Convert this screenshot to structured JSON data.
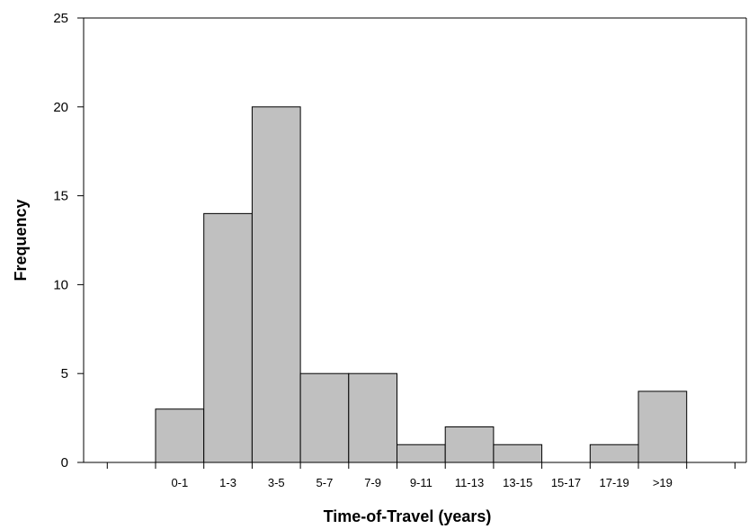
{
  "chart_data": {
    "type": "bar",
    "title": "",
    "xlabel": "Time-of-Travel (years)",
    "ylabel": "Frequency",
    "categories": [
      "0-1",
      "1-3",
      "3-5",
      "5-7",
      "7-9",
      "9-11",
      "11-13",
      "13-15",
      "15-17",
      "17-19",
      ">19"
    ],
    "values": [
      3,
      14,
      20,
      5,
      5,
      1,
      2,
      1,
      0,
      1,
      4
    ],
    "ylim": [
      0,
      25
    ],
    "yticks": [
      0,
      5,
      10,
      15,
      20,
      25
    ],
    "grid": false,
    "legend": "none",
    "bar_color": "#c0c0c0"
  }
}
